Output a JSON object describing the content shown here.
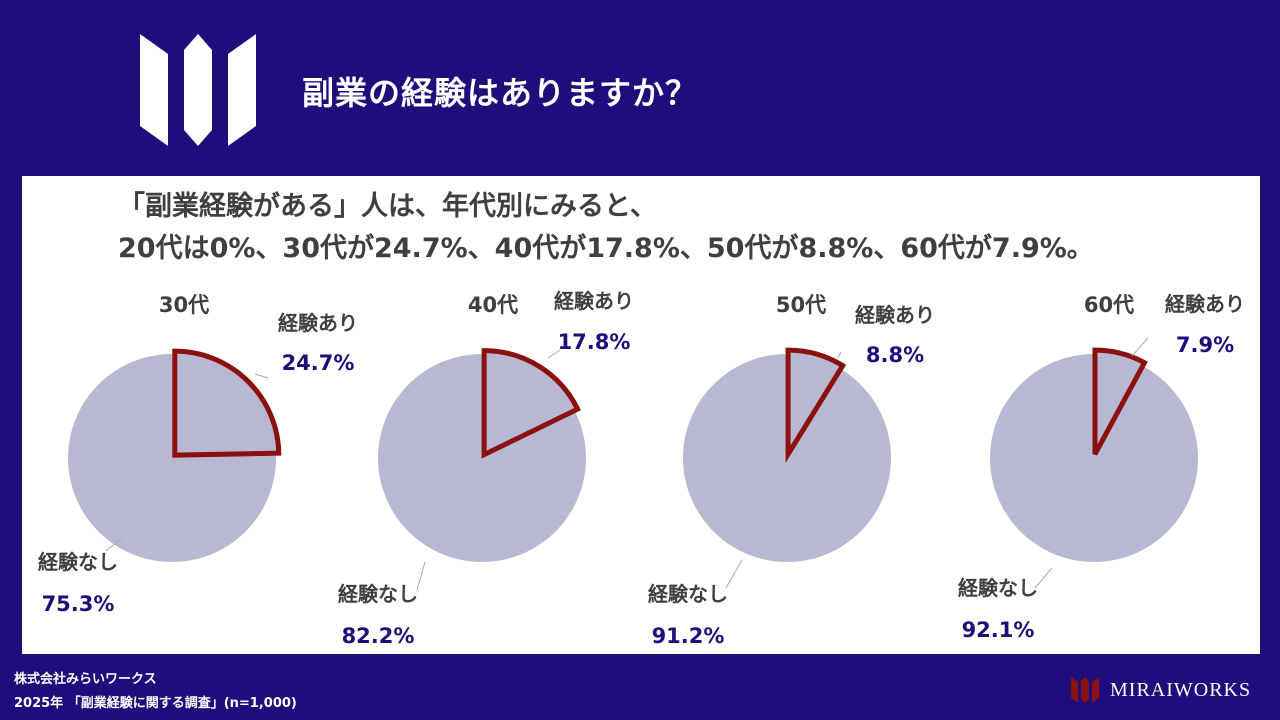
{
  "header": {
    "title": "副業の経験はありますか？"
  },
  "summary": {
    "line1": "「副業経験がある」人は、年代別にみると、",
    "line2": "20代は0%、30代が24.7%、40代が17.8%、50代が8.8%、60代が7.9%。"
  },
  "footer": {
    "company": "株式会社みらいワークス",
    "survey": "2025年 「副業経験に関する調査」(n=1,000)",
    "brand": "MIRAIWORKS"
  },
  "colors": {
    "background": "#1e0d7a",
    "panel": "#ffffff",
    "pie_no": "#b9b8d3",
    "pie_yes_stroke": "#8b1010",
    "value_text": "#1e0d7a",
    "label_text": "#3f3f3f"
  },
  "chart_data": [
    {
      "type": "pie",
      "title": "30代",
      "slices": [
        {
          "label": "経験あり",
          "value": 24.7,
          "display": "24.7%"
        },
        {
          "label": "経験なし",
          "value": 75.3,
          "display": "75.3%"
        }
      ]
    },
    {
      "type": "pie",
      "title": "40代",
      "slices": [
        {
          "label": "経験あり",
          "value": 17.8,
          "display": "17.8%"
        },
        {
          "label": "経験なし",
          "value": 82.2,
          "display": "82.2%"
        }
      ]
    },
    {
      "type": "pie",
      "title": "50代",
      "slices": [
        {
          "label": "経験あり",
          "value": 8.8,
          "display": "8.8%"
        },
        {
          "label": "経験なし",
          "value": 91.2,
          "display": "91.2%"
        }
      ]
    },
    {
      "type": "pie",
      "title": "60代",
      "slices": [
        {
          "label": "経験あり",
          "value": 7.9,
          "display": "7.9%"
        },
        {
          "label": "経験なし",
          "value": 92.1,
          "display": "92.1%"
        }
      ]
    }
  ]
}
